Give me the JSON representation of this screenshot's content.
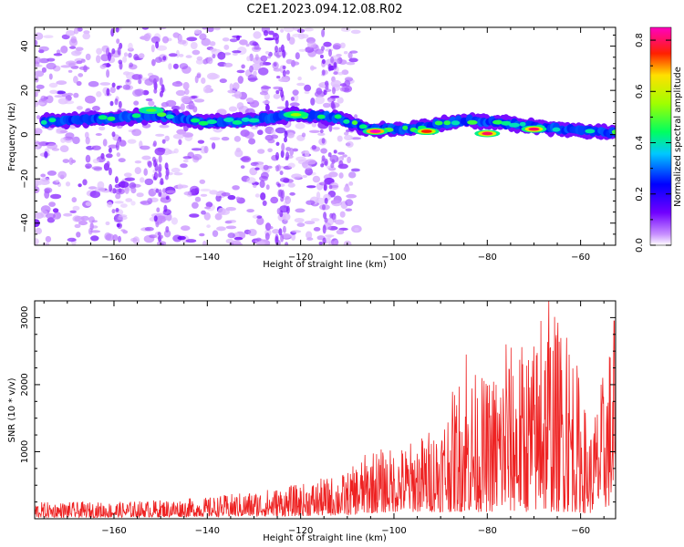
{
  "title": "C2E1.2023.094.12.08.R02",
  "chart_data": [
    {
      "type": "heatmap",
      "xlabel": "Height of straight line (km)",
      "ylabel": "Frequency (Hz)",
      "xlim": [
        -177,
        -52.5
      ],
      "ylim": [
        -50,
        48.5
      ],
      "xticks": [
        -160,
        -140,
        -120,
        -100,
        -80,
        -60
      ],
      "yticks": [
        -40,
        -20,
        0,
        20,
        40
      ],
      "colorbar": {
        "label": "Normalized spectral amplitude",
        "range": [
          0,
          0.85
        ],
        "ticks": [
          0.0,
          0.2,
          0.4,
          0.6,
          0.8
        ],
        "colormap": "rainbow (violet → blue → cyan → green → yellow → red → magenta)"
      },
      "ridge": {
        "description": "dominant frequency band drifting from about 6 Hz near -175 km down to about 2 Hz near -53 km",
        "points": [
          {
            "x": -175,
            "y": 6.0
          },
          {
            "x": -160,
            "y": 7.5
          },
          {
            "x": -150,
            "y": 8.5
          },
          {
            "x": -140,
            "y": 5.5
          },
          {
            "x": -130,
            "y": 6.5
          },
          {
            "x": -122,
            "y": 9.0
          },
          {
            "x": -112,
            "y": 7.5
          },
          {
            "x": -105,
            "y": 2.0
          },
          {
            "x": -95,
            "y": 3.0
          },
          {
            "x": -85,
            "y": 6.5
          },
          {
            "x": -75,
            "y": 5.0
          },
          {
            "x": -65,
            "y": 2.5
          },
          {
            "x": -55,
            "y": 1.0
          }
        ],
        "peaks": [
          {
            "x": -104,
            "y": 1.5,
            "amp": 0.85
          },
          {
            "x": -93,
            "y": 1.5,
            "amp": 0.75
          },
          {
            "x": -80,
            "y": 0.5,
            "amp": 0.8
          },
          {
            "x": -70,
            "y": 2.5,
            "amp": 0.8
          },
          {
            "x": -121,
            "y": 9.0,
            "amp": 0.55
          },
          {
            "x": -152,
            "y": 11.0,
            "amp": 0.5
          }
        ]
      },
      "background_noise": "scattered low-amplitude violet blobs across all frequencies for heights below about -110 km"
    },
    {
      "type": "line",
      "xlabel": "Height of straight line (km)",
      "ylabel": "SNR (10 * v/v)",
      "xlim": [
        -177,
        -52.5
      ],
      "ylim": [
        0,
        3250
      ],
      "xticks": [
        -160,
        -140,
        -120,
        -100,
        -80,
        -60
      ],
      "yticks": [
        1000,
        2000,
        3000
      ],
      "line_color": "#ee2222",
      "envelope": [
        {
          "x": -177,
          "low": 20,
          "high": 250
        },
        {
          "x": -160,
          "low": 20,
          "high": 250
        },
        {
          "x": -140,
          "low": 30,
          "high": 320
        },
        {
          "x": -130,
          "low": 30,
          "high": 420
        },
        {
          "x": -120,
          "low": 40,
          "high": 520
        },
        {
          "x": -110,
          "low": 50,
          "high": 700
        },
        {
          "x": -105,
          "low": 80,
          "high": 1050
        },
        {
          "x": -100,
          "low": 100,
          "high": 1050
        },
        {
          "x": -95,
          "low": 100,
          "high": 1200
        },
        {
          "x": -90,
          "low": 100,
          "high": 1500
        },
        {
          "x": -85,
          "low": 100,
          "high": 2300
        },
        {
          "x": -80,
          "low": 100,
          "high": 2100
        },
        {
          "x": -75,
          "low": 100,
          "high": 2600
        },
        {
          "x": -70,
          "low": 100,
          "high": 2700
        },
        {
          "x": -67,
          "low": 100,
          "high": 3200
        },
        {
          "x": -62,
          "low": 100,
          "high": 2800
        },
        {
          "x": -58,
          "low": 80,
          "high": 1300
        },
        {
          "x": -53,
          "low": 200,
          "high": 2900
        }
      ],
      "peaks": [
        {
          "x": -84.5,
          "y": 2450
        },
        {
          "x": -76,
          "y": 2600
        },
        {
          "x": -68.5,
          "y": 2950
        },
        {
          "x": -66.8,
          "y": 3250
        },
        {
          "x": -63,
          "y": 2700
        },
        {
          "x": -52.8,
          "y": 2950
        }
      ]
    }
  ]
}
